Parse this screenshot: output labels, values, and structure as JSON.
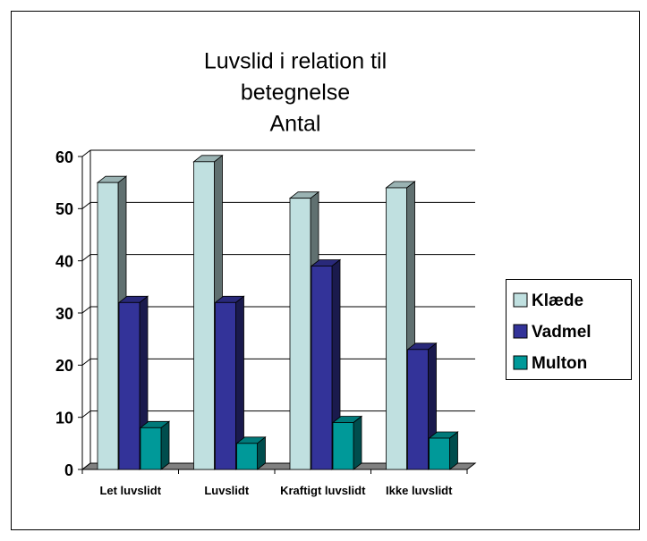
{
  "chart_data": {
    "type": "bar3d",
    "title": [
      "Luvslid i relation til",
      "betegnelse",
      "Antal"
    ],
    "categories": [
      "Let luvslidt",
      "Luvslidt",
      "Kraftigt luvslidt",
      "Ikke luvslidt"
    ],
    "series": [
      {
        "name": "Klæde",
        "color": "#c0e0e0",
        "values": [
          55,
          59,
          52,
          54
        ]
      },
      {
        "name": "Vadmel",
        "color": "#333399",
        "values": [
          32,
          32,
          39,
          23
        ]
      },
      {
        "name": "Multon",
        "color": "#009999",
        "values": [
          8,
          5,
          9,
          6
        ]
      }
    ],
    "ylim": [
      0,
      60
    ],
    "yticks": [
      0,
      10,
      20,
      30,
      40,
      50,
      60
    ],
    "grid": true,
    "legend": "right"
  }
}
